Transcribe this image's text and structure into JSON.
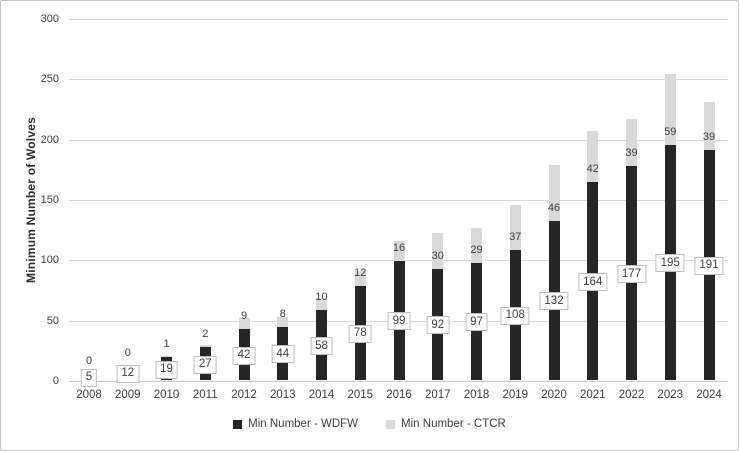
{
  "chart_data": {
    "type": "bar",
    "stacked": true,
    "title": "",
    "xlabel": "",
    "ylabel": "Minimum Number of Wolves",
    "ylim": [
      0,
      300
    ],
    "yticks": [
      0,
      50,
      100,
      150,
      200,
      250,
      300
    ],
    "grid": "horizontal",
    "legend_position": "bottom",
    "categories": [
      "2008",
      "2009",
      "2010",
      "2011",
      "2012",
      "2013",
      "2014",
      "2015",
      "2016",
      "2017",
      "2018",
      "2019",
      "2020",
      "2021",
      "2022",
      "2023",
      "2024"
    ],
    "series": [
      {
        "name": "Min Number - WDFW",
        "color": "#262626",
        "label_style": "boxed",
        "values": [
          5,
          12,
          19,
          27,
          42,
          44,
          58,
          78,
          99,
          92,
          97,
          108,
          132,
          164,
          177,
          195,
          191
        ]
      },
      {
        "name": "Min Number - CTCR",
        "color": "#d9d9d9",
        "label_style": "plain",
        "values": [
          0,
          0,
          1,
          2,
          9,
          8,
          10,
          12,
          16,
          30,
          29,
          37,
          46,
          42,
          39,
          59,
          39
        ]
      }
    ]
  },
  "colors": {
    "gridline": "#d9d9d9",
    "axis_line": "#c9c9c9",
    "tick_text": "#404040",
    "label_box_border": "#bdbdbd",
    "label_box_bg": "#ffffff",
    "frame_border": "#c6c6c6",
    "background": "#ffffff"
  }
}
